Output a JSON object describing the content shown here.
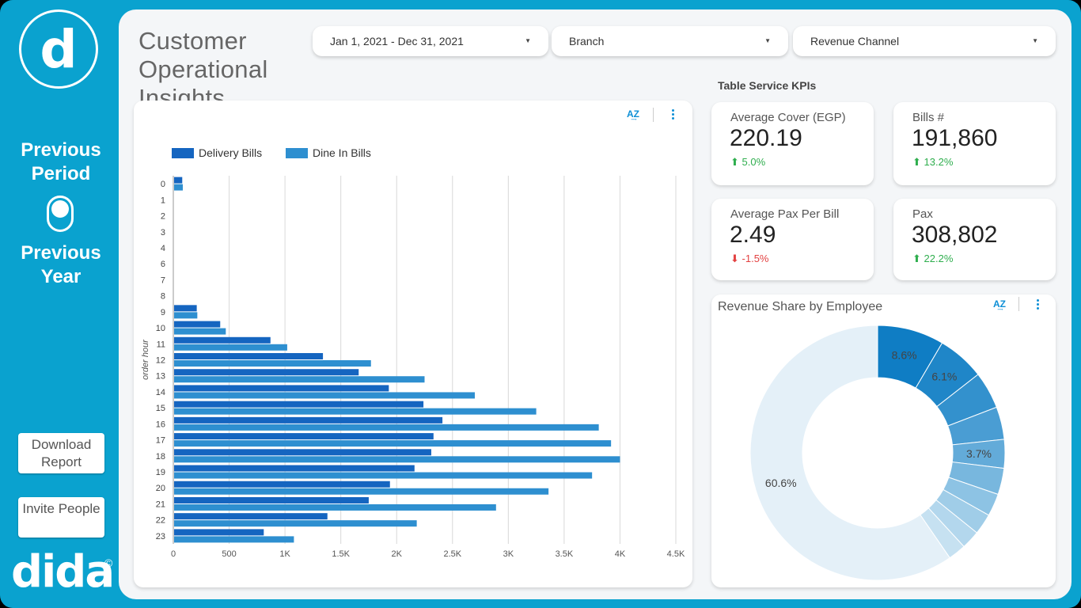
{
  "sidebar": {
    "logo_letter": "d",
    "previous_period": "Previous Period",
    "previous_year": "Previous Year",
    "download_button": "Download Report",
    "invite_button": "Invite People",
    "brand_name": "dida",
    "brand_copyright": "©"
  },
  "header": {
    "title": "Customer Operational Insights"
  },
  "filters": {
    "date_range": "Jan 1, 2021 - Dec 31, 2021",
    "branch": "Branch",
    "revenue_channel": "Revenue Channel"
  },
  "kpis": {
    "section_label": "Table Service KPIs",
    "items": [
      {
        "title": "Average Cover (EGP)",
        "value": "220.19",
        "delta": "5.0%",
        "direction": "up"
      },
      {
        "title": "Bills #",
        "value": "191,860",
        "delta": "13.2%",
        "direction": "up"
      },
      {
        "title": "Average Pax Per Bill",
        "value": "2.49",
        "delta": "-1.5%",
        "direction": "down"
      },
      {
        "title": "Pax",
        "value": "308,802",
        "delta": "22.2%",
        "direction": "up"
      }
    ]
  },
  "colors": {
    "accent": "#0aa2cf",
    "delivery": "#1565c0",
    "dine_in": "#2e8fd0",
    "up": "#2fae4e",
    "down": "#e34242"
  },
  "chart_data": [
    {
      "type": "bar",
      "orientation": "horizontal",
      "title": "",
      "ylabel": "order hour",
      "xlabel": "",
      "categories": [
        "0",
        "1",
        "2",
        "3",
        "4",
        "6",
        "7",
        "8",
        "9",
        "10",
        "11",
        "12",
        "13",
        "14",
        "15",
        "16",
        "17",
        "18",
        "19",
        "20",
        "21",
        "22",
        "23"
      ],
      "series": [
        {
          "name": "Delivery Bills",
          "color": "#1565c0",
          "values": [
            80,
            0,
            0,
            0,
            0,
            0,
            0,
            0,
            210,
            420,
            870,
            1340,
            1660,
            1930,
            2240,
            2410,
            2330,
            2310,
            2160,
            1940,
            1750,
            1380,
            810
          ]
        },
        {
          "name": "Dine In Bills",
          "color": "#2e8fd0",
          "values": [
            85,
            0,
            0,
            0,
            0,
            0,
            0,
            0,
            215,
            470,
            1020,
            1770,
            2250,
            2700,
            3250,
            3810,
            3920,
            4000,
            3750,
            3360,
            2890,
            2180,
            1080
          ]
        }
      ],
      "xlim": [
        0,
        4500
      ],
      "x_ticks": [
        "0",
        "500",
        "1K",
        "1.5K",
        "2K",
        "2.5K",
        "3K",
        "3.5K",
        "4K",
        "4.5K"
      ],
      "legend": "top-left",
      "grid": "vertical"
    },
    {
      "type": "pie",
      "title": "Revenue Share by Employee",
      "donut": true,
      "slices": [
        {
          "value": 8.6,
          "label": "8.6%",
          "color": "#0f7dc4"
        },
        {
          "value": 6.1,
          "label": "6.1%",
          "color": "#1f86c8"
        },
        {
          "value": 4.8,
          "label": "",
          "color": "#3391cd"
        },
        {
          "value": 4.2,
          "label": "",
          "color": "#4a9dd3"
        },
        {
          "value": 3.7,
          "label": "3.7%",
          "color": "#63abd9"
        },
        {
          "value": 3.4,
          "label": "",
          "color": "#78b7de"
        },
        {
          "value": 2.9,
          "label": "",
          "color": "#8dc3e4"
        },
        {
          "value": 2.7,
          "label": "",
          "color": "#a0cde8"
        },
        {
          "value": 2.4,
          "label": "",
          "color": "#b3d7ed"
        },
        {
          "value": 2.3,
          "label": "",
          "color": "#c6e1f1"
        },
        {
          "value": 60.6,
          "label": "60.6%",
          "color": "#e4f0f8"
        }
      ]
    }
  ]
}
